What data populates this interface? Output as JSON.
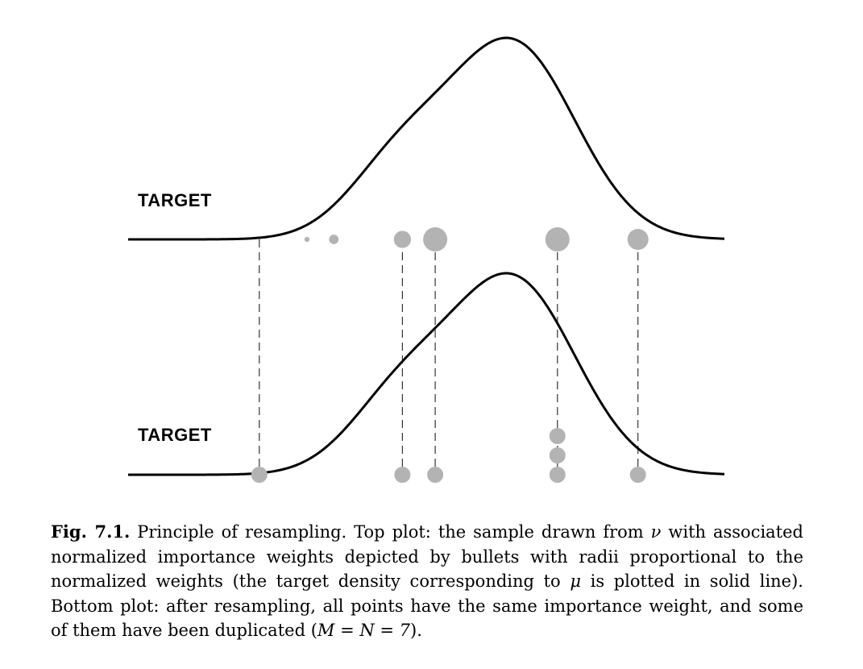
{
  "figure": {
    "panels": [
      {
        "id": "top",
        "label": "TARGET"
      },
      {
        "id": "bottom",
        "label": "TARGET"
      }
    ],
    "line_color": "#000000",
    "bullet_color": "#b3b3b3",
    "dash_color": "#333333"
  },
  "samples": {
    "top_weights": [
      {
        "x": 0.22,
        "w": 0.0
      },
      {
        "x": 0.3,
        "w": 0.08
      },
      {
        "x": 0.345,
        "w": 0.15
      },
      {
        "x": 0.46,
        "w": 0.27
      },
      {
        "x": 0.515,
        "w": 0.38
      },
      {
        "x": 0.72,
        "w": 0.38
      },
      {
        "x": 0.855,
        "w": 0.33
      }
    ],
    "dashed_indices": [
      0,
      3,
      4,
      5,
      6
    ],
    "bottom_counts": [
      {
        "x": 0.22,
        "count": 1
      },
      {
        "x": 0.46,
        "count": 1
      },
      {
        "x": 0.515,
        "count": 1
      },
      {
        "x": 0.72,
        "count": 3
      },
      {
        "x": 0.855,
        "count": 1
      }
    ]
  },
  "caption": {
    "fig_num": "Fig. 7.1.",
    "text_1": " Principle of resampling. Top plot: the sample drawn from ",
    "nu": "ν",
    "text_2": " with associated normalized importance weights depicted by bullets with radii proportional to the normalized weights (the target density corresponding to ",
    "mu": "μ",
    "text_3": " is plotted in solid line). Bottom plot: after resampling, all points have the same importance weight, and some of them have been duplicated (",
    "math_eq": "M = N = 7",
    "text_4": ")."
  }
}
